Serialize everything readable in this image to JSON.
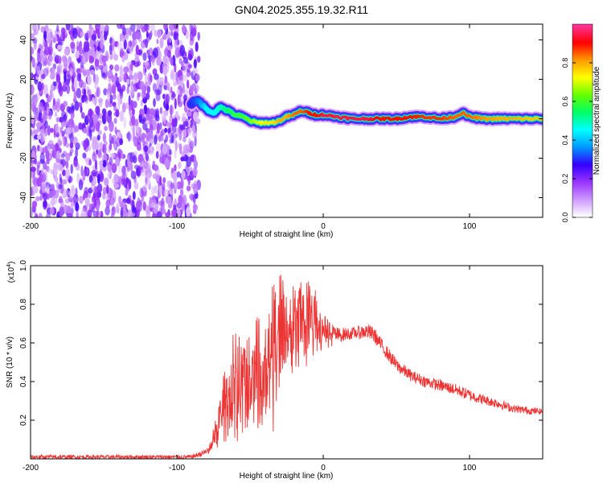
{
  "title": "GN04.2025.355.19.32.R11",
  "chart_data": [
    {
      "type": "heatmap",
      "xlabel": "Height of straight line (km)",
      "ylabel": "Frequency (Hz)",
      "xlim": [
        -200,
        150
      ],
      "ylim": [
        -50,
        48
      ],
      "x_ticks": [
        -200,
        -100,
        0,
        100
      ],
      "y_ticks": [
        -40,
        -20,
        0,
        20,
        40
      ],
      "colorbar": {
        "label": "Normalized spectral amplitude",
        "range": [
          0,
          1
        ],
        "ticks": [
          "0.0",
          "0.2",
          "0.4",
          "0.6",
          "0.8"
        ],
        "colors": [
          "#ffffff",
          "#cc99ff",
          "#9933ff",
          "#3300ff",
          "#0099ff",
          "#00ffff",
          "#00ff66",
          "#66ff00",
          "#ffff00",
          "#ff9900",
          "#ff0000",
          "#ff3399"
        ]
      },
      "noise_region": {
        "x_range": [
          -200,
          -85
        ],
        "level": [
          0.05,
          0.25
        ]
      },
      "ridge": [
        {
          "x": -90,
          "y": 8,
          "amp": 0.3
        },
        {
          "x": -85,
          "y": 9,
          "amp": 0.35
        },
        {
          "x": -80,
          "y": 5,
          "amp": 0.45
        },
        {
          "x": -75,
          "y": 3,
          "amp": 0.45
        },
        {
          "x": -70,
          "y": 6,
          "amp": 0.5
        },
        {
          "x": -65,
          "y": 4,
          "amp": 0.55
        },
        {
          "x": -60,
          "y": 2,
          "amp": 0.6
        },
        {
          "x": -55,
          "y": 1,
          "amp": 0.6
        },
        {
          "x": -50,
          "y": -1,
          "amp": 0.65
        },
        {
          "x": -45,
          "y": -2,
          "amp": 0.7
        },
        {
          "x": -40,
          "y": -2,
          "amp": 0.75
        },
        {
          "x": -35,
          "y": -2,
          "amp": 0.75
        },
        {
          "x": -30,
          "y": -1,
          "amp": 0.8
        },
        {
          "x": -25,
          "y": 1,
          "amp": 0.8
        },
        {
          "x": -20,
          "y": 2,
          "amp": 0.85
        },
        {
          "x": -15,
          "y": 4,
          "amp": 0.85
        },
        {
          "x": -10,
          "y": 3,
          "amp": 0.9
        },
        {
          "x": -5,
          "y": 2,
          "amp": 0.9
        },
        {
          "x": 0,
          "y": 2,
          "amp": 0.95
        },
        {
          "x": 10,
          "y": 1,
          "amp": 0.95
        },
        {
          "x": 20,
          "y": 0,
          "amp": 0.95
        },
        {
          "x": 30,
          "y": 0,
          "amp": 0.95
        },
        {
          "x": 40,
          "y": 0,
          "amp": 0.9
        },
        {
          "x": 50,
          "y": 0,
          "amp": 0.9
        },
        {
          "x": 60,
          "y": 1,
          "amp": 0.9
        },
        {
          "x": 70,
          "y": 1,
          "amp": 0.88
        },
        {
          "x": 80,
          "y": 0,
          "amp": 0.88
        },
        {
          "x": 90,
          "y": 1,
          "amp": 0.85
        },
        {
          "x": 95,
          "y": 3,
          "amp": 0.85
        },
        {
          "x": 100,
          "y": 1,
          "amp": 0.85
        },
        {
          "x": 110,
          "y": 0,
          "amp": 0.82
        },
        {
          "x": 120,
          "y": 0,
          "amp": 0.8
        },
        {
          "x": 130,
          "y": 0,
          "amp": 0.8
        },
        {
          "x": 140,
          "y": 0,
          "amp": 0.78
        },
        {
          "x": 150,
          "y": 0,
          "amp": 0.78
        }
      ]
    },
    {
      "type": "line",
      "xlabel": "Height of straight line (km)",
      "ylabel": "SNR (10 * v/v)",
      "multiplier_label": "(x10",
      "multiplier_exp": "4",
      "xlim": [
        -200,
        150
      ],
      "ylim": [
        0,
        1.0
      ],
      "x_ticks": [
        -200,
        -100,
        0,
        100
      ],
      "y_ticks": [
        "0.2",
        "0.4",
        "0.6",
        "0.8",
        "1.0"
      ],
      "color": "#ee3333",
      "envelope": [
        {
          "x": -200,
          "low": 0.0,
          "high": 0.02
        },
        {
          "x": -90,
          "low": 0.0,
          "high": 0.02
        },
        {
          "x": -78,
          "low": 0.02,
          "high": 0.06
        },
        {
          "x": -72,
          "low": 0.05,
          "high": 0.3
        },
        {
          "x": -65,
          "low": 0.05,
          "high": 0.55
        },
        {
          "x": -60,
          "low": 0.05,
          "high": 0.75
        },
        {
          "x": -55,
          "low": 0.05,
          "high": 0.6
        },
        {
          "x": -50,
          "low": 0.1,
          "high": 0.65
        },
        {
          "x": -45,
          "low": 0.15,
          "high": 0.75
        },
        {
          "x": -40,
          "low": 0.15,
          "high": 0.7
        },
        {
          "x": -35,
          "low": 0.1,
          "high": 0.9
        },
        {
          "x": -30,
          "low": 0.3,
          "high": 1.0
        },
        {
          "x": -25,
          "low": 0.35,
          "high": 0.85
        },
        {
          "x": -20,
          "low": 0.45,
          "high": 0.9
        },
        {
          "x": -15,
          "low": 0.45,
          "high": 0.95
        },
        {
          "x": -10,
          "low": 0.45,
          "high": 0.98
        },
        {
          "x": -5,
          "low": 0.5,
          "high": 0.9
        },
        {
          "x": 0,
          "low": 0.55,
          "high": 0.75
        },
        {
          "x": 10,
          "low": 0.6,
          "high": 0.68
        },
        {
          "x": 20,
          "low": 0.62,
          "high": 0.68
        },
        {
          "x": 30,
          "low": 0.62,
          "high": 0.7
        },
        {
          "x": 35,
          "low": 0.6,
          "high": 0.68
        },
        {
          "x": 40,
          "low": 0.55,
          "high": 0.62
        },
        {
          "x": 50,
          "low": 0.45,
          "high": 0.52
        },
        {
          "x": 60,
          "low": 0.4,
          "high": 0.46
        },
        {
          "x": 70,
          "low": 0.37,
          "high": 0.43
        },
        {
          "x": 80,
          "low": 0.35,
          "high": 0.41
        },
        {
          "x": 90,
          "low": 0.33,
          "high": 0.39
        },
        {
          "x": 100,
          "low": 0.3,
          "high": 0.36
        },
        {
          "x": 110,
          "low": 0.28,
          "high": 0.33
        },
        {
          "x": 120,
          "low": 0.26,
          "high": 0.31
        },
        {
          "x": 130,
          "low": 0.24,
          "high": 0.28
        },
        {
          "x": 140,
          "low": 0.23,
          "high": 0.27
        },
        {
          "x": 150,
          "low": 0.23,
          "high": 0.26
        }
      ]
    }
  ]
}
